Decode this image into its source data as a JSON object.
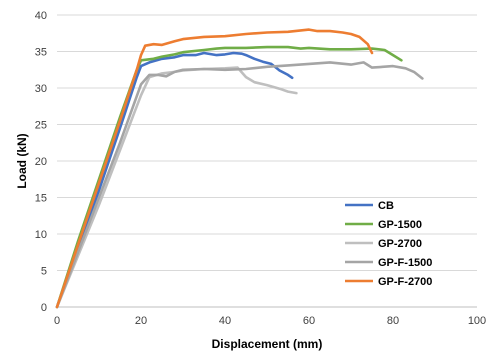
{
  "chart_data": {
    "type": "line",
    "title": "",
    "xlabel": "Displacement (mm)",
    "ylabel": "Load (kN)",
    "xlim": [
      0,
      100
    ],
    "ylim": [
      0,
      40
    ],
    "xticks": [
      0,
      20,
      40,
      60,
      80,
      100
    ],
    "yticks": [
      0,
      5,
      10,
      15,
      20,
      25,
      30,
      35,
      40
    ],
    "grid": "horizontal",
    "legend_position": "bottom-right",
    "series": [
      {
        "name": "CB",
        "color": "#4472C4",
        "x": [
          0,
          5,
          10,
          15,
          19,
          20,
          22,
          25,
          28,
          30,
          33,
          35,
          38,
          40,
          42,
          44,
          45,
          47,
          49,
          51,
          53,
          55,
          56
        ],
        "y": [
          0,
          8,
          16,
          24.5,
          31.5,
          33,
          33.5,
          34,
          34.2,
          34.5,
          34.5,
          34.8,
          34.5,
          34.6,
          34.8,
          34.7,
          34.5,
          34,
          33.6,
          33.3,
          32.4,
          31.8,
          31.4
        ]
      },
      {
        "name": "GP-1500",
        "color": "#70AD47",
        "x": [
          0,
          5,
          10,
          15,
          19,
          20,
          23,
          25,
          28,
          30,
          35,
          38,
          40,
          45,
          50,
          55,
          58,
          60,
          65,
          70,
          75,
          78,
          80,
          82
        ],
        "y": [
          0,
          9,
          17.5,
          26,
          32.5,
          33.8,
          34,
          34.3,
          34.6,
          34.9,
          35.2,
          35.4,
          35.5,
          35.5,
          35.6,
          35.6,
          35.4,
          35.5,
          35.3,
          35.3,
          35.4,
          35.2,
          34.5,
          33.8
        ]
      },
      {
        "name": "GP-2700",
        "color": "#BFBFBF",
        "x": [
          0,
          5,
          10,
          15,
          18,
          20,
          22,
          25,
          28,
          30,
          35,
          40,
          43,
          45,
          47,
          50,
          53,
          55,
          57
        ],
        "y": [
          0,
          7,
          14,
          21.5,
          26,
          29,
          31.5,
          32,
          32.2,
          32.4,
          32.6,
          32.7,
          32.8,
          31.5,
          30.8,
          30.4,
          29.9,
          29.5,
          29.3
        ]
      },
      {
        "name": "GP-F-1500",
        "color": "#A5A5A5",
        "x": [
          0,
          5,
          10,
          15,
          20,
          22,
          24,
          26,
          28,
          30,
          35,
          40,
          45,
          50,
          55,
          60,
          65,
          70,
          73,
          75,
          80,
          83,
          85,
          87
        ],
        "y": [
          0,
          7.5,
          15,
          22.5,
          30.5,
          31.8,
          31.8,
          31.6,
          32.2,
          32.5,
          32.6,
          32.5,
          32.6,
          32.9,
          33.1,
          33.3,
          33.5,
          33.2,
          33.5,
          32.8,
          33,
          32.7,
          32.2,
          31.3
        ]
      },
      {
        "name": "GP-F-2700",
        "color": "#ED7D31",
        "x": [
          0,
          5,
          10,
          15,
          19,
          20,
          21,
          23,
          25,
          28,
          30,
          35,
          40,
          45,
          50,
          55,
          60,
          62,
          65,
          68,
          70,
          72,
          74,
          75
        ],
        "y": [
          0,
          8.5,
          17,
          25.5,
          32.5,
          34.5,
          35.8,
          36,
          35.9,
          36.4,
          36.7,
          37,
          37.1,
          37.4,
          37.6,
          37.7,
          38,
          37.8,
          37.8,
          37.6,
          37.4,
          37,
          36,
          34.8
        ]
      }
    ]
  }
}
